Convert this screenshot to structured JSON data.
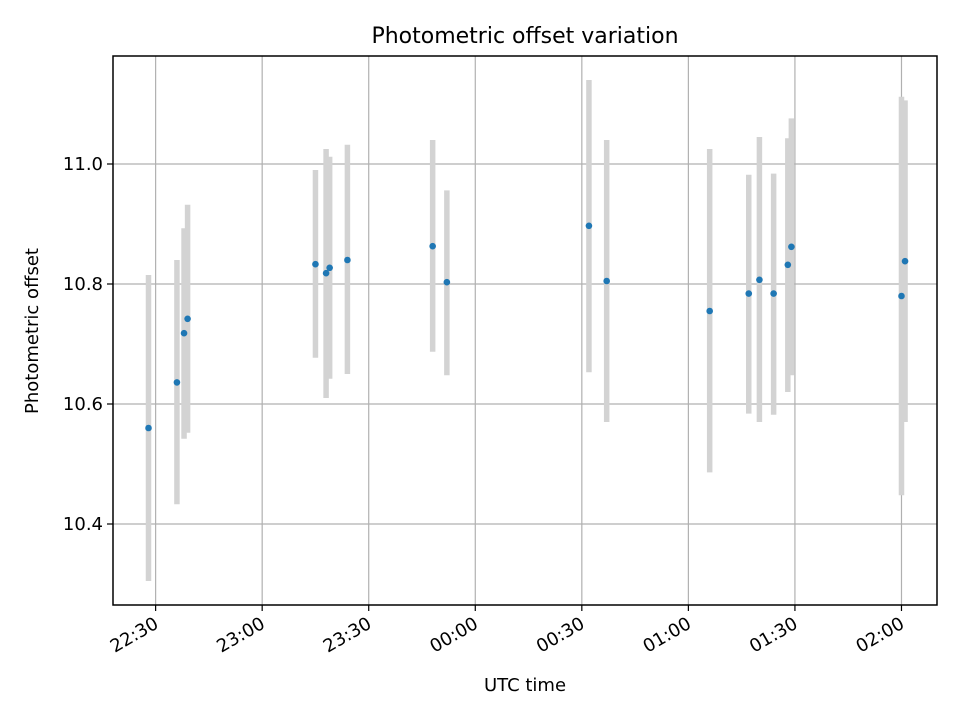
{
  "chart_data": {
    "type": "scatter",
    "title": "Photometric offset variation",
    "xlabel": "UTC time",
    "ylabel": "Photometric offset",
    "x_ticks": [
      "22:30",
      "23:00",
      "23:30",
      "00:00",
      "00:30",
      "01:00",
      "01:30",
      "02:00"
    ],
    "y_ticks": [
      10.4,
      10.6,
      10.8,
      11.0
    ],
    "y_tick_labels": [
      "10.4",
      "10.6",
      "10.8",
      "11.0"
    ],
    "ylim": [
      10.265,
      11.18
    ],
    "xlim": [
      "22:18",
      "02:10"
    ],
    "grid": true,
    "colors": {
      "point": "#1f77b4",
      "errorbar": "#d3d3d3"
    },
    "points": [
      {
        "time": "22:28",
        "offset": 10.56,
        "err_low": 10.305,
        "err_high": 10.815
      },
      {
        "time": "22:36",
        "offset": 10.636,
        "err_low": 10.433,
        "err_high": 10.84
      },
      {
        "time": "22:38",
        "offset": 10.718,
        "err_low": 10.542,
        "err_high": 10.893
      },
      {
        "time": "22:39",
        "offset": 10.742,
        "err_low": 10.552,
        "err_high": 10.932
      },
      {
        "time": "23:15",
        "offset": 10.833,
        "err_low": 10.677,
        "err_high": 10.99
      },
      {
        "time": "23:18",
        "offset": 10.818,
        "err_low": 10.61,
        "err_high": 11.025
      },
      {
        "time": "23:19",
        "offset": 10.827,
        "err_low": 10.642,
        "err_high": 11.012
      },
      {
        "time": "23:24",
        "offset": 10.84,
        "err_low": 10.65,
        "err_high": 11.032
      },
      {
        "time": "23:48",
        "offset": 10.863,
        "err_low": 10.687,
        "err_high": 11.04
      },
      {
        "time": "23:52",
        "offset": 10.803,
        "err_low": 10.648,
        "err_high": 10.956
      },
      {
        "time": "00:32",
        "offset": 10.897,
        "err_low": 10.653,
        "err_high": 11.14
      },
      {
        "time": "00:37",
        "offset": 10.805,
        "err_low": 10.57,
        "err_high": 11.04
      },
      {
        "time": "01:06",
        "offset": 10.755,
        "err_low": 10.486,
        "err_high": 11.025
      },
      {
        "time": "01:17",
        "offset": 10.784,
        "err_low": 10.584,
        "err_high": 10.982
      },
      {
        "time": "01:20",
        "offset": 10.807,
        "err_low": 10.57,
        "err_high": 11.045
      },
      {
        "time": "01:24",
        "offset": 10.784,
        "err_low": 10.582,
        "err_high": 10.984
      },
      {
        "time": "01:28",
        "offset": 10.832,
        "err_low": 10.62,
        "err_high": 11.043
      },
      {
        "time": "01:29",
        "offset": 10.862,
        "err_low": 10.648,
        "err_high": 11.076
      },
      {
        "time": "02:00",
        "offset": 10.78,
        "err_low": 10.448,
        "err_high": 11.112
      },
      {
        "time": "02:01",
        "offset": 10.838,
        "err_low": 10.57,
        "err_high": 11.106
      }
    ]
  }
}
